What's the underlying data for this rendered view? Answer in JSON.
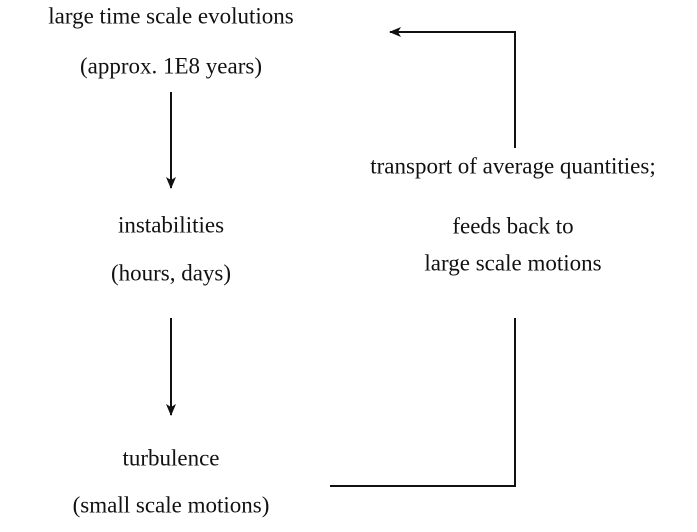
{
  "nodes": [
    {
      "lines": [
        "large time scale evolutions",
        "(approx. 1E8 years)"
      ]
    },
    {
      "lines": [
        "instabilities",
        "(hours, days)"
      ]
    },
    {
      "lines": [
        "turbulence",
        "(small scale motions)"
      ]
    }
  ],
  "feedback": {
    "lines": [
      "transport of average quantities;",
      "feeds back to",
      "large scale motions"
    ]
  }
}
